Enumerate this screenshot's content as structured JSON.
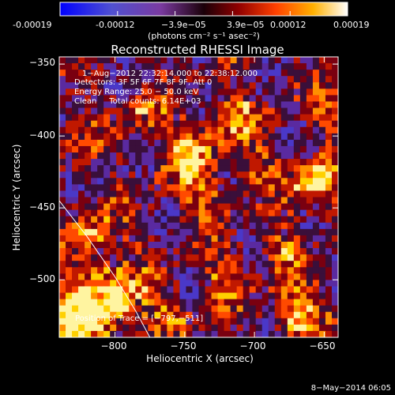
{
  "colorbar": {
    "ticks": [
      "-0.00019",
      "-0.00012",
      "−3.9e−05",
      "3.9e−05",
      "0.00012",
      "0.00019"
    ],
    "unit_label": "(photons cm⁻² s⁻¹ asec⁻²)"
  },
  "image": {
    "title": "Reconstructed RHESSI Image",
    "info_lines": [
      "1−Aug−2012 22:32:14.000 to 22:38:12.000",
      "Detectors: 3F 5F 6F 7F 8F 9F, Att 0",
      "Energy Range: 25.0 − 50.0 keV",
      "Clean     Total counts: 6.14E+03"
    ],
    "position_label": "Position of Trace = [−797,−511]",
    "footer_date": "8−May−2014 06:05"
  },
  "chart_data": {
    "type": "heatmap",
    "title": "Reconstructed RHESSI Image",
    "xlabel": "Heliocentric X (arcsec)",
    "ylabel": "Heliocentric Y (arcsec)",
    "xlim": [
      -840,
      -640
    ],
    "ylim": [
      -540,
      -345
    ],
    "x_ticks": [
      -800,
      -750,
      -700,
      -650
    ],
    "y_ticks": [
      -350,
      -400,
      -450,
      -500
    ],
    "x_tick_labels": [
      "−800",
      "−750",
      "−700",
      "−650"
    ],
    "y_tick_labels": [
      "−350",
      "−400",
      "−450",
      "−500"
    ],
    "value_range": [
      -0.00019,
      0.00019
    ],
    "colormap": [
      "#0000ff",
      "#6a2aa0",
      "#2a0a2a",
      "#800000",
      "#e03000",
      "#ff8a00",
      "#ffd000",
      "#ffffff"
    ],
    "limb_trace": [
      [
        -840,
        -445
      ],
      [
        -820,
        -470
      ],
      [
        -800,
        -498
      ],
      [
        -785,
        -522
      ],
      [
        -775,
        -540
      ]
    ],
    "trace_position": [
      -797,
      -511
    ]
  }
}
